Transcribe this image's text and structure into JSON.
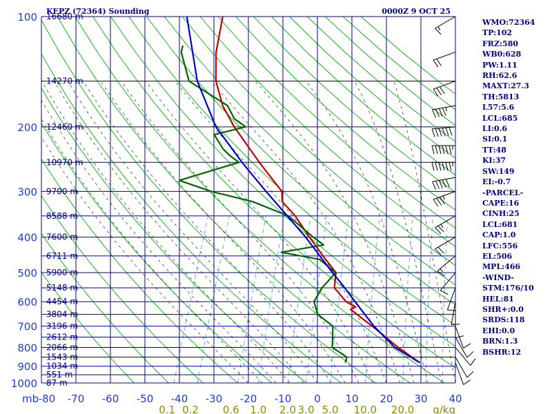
{
  "header": {
    "title": "KEPZ (72364) Sounding",
    "time": "0000Z  9 OCT 25"
  },
  "indices": [
    "WMO:72364",
    "TP:102",
    "FRZ:580",
    "WB0:628",
    "PW:1.11",
    "RH:62.6",
    "MAXT:27.3",
    "TH:5813",
    "L57:5.6",
    "LCL:685",
    "LI:0.6",
    "SI:0.1",
    "TT:48",
    "KI:37",
    "SW:149",
    "EI:-0.7",
    "-PARCEL-",
    "CAPE:16",
    "CINH:25",
    "LCL:681",
    "CAP:1.0",
    "LFC:556",
    "EL:506",
    "MPL:466",
    "-WIND-",
    "STM:176/10",
    "HEL:81",
    "SHR+:0.0",
    "SRDS:118",
    "EHI:0.0",
    "BRN:1.3",
    "BSHR:12"
  ],
  "chart_data": {
    "type": "line",
    "title": "KEPZ (72364) Sounding",
    "diagram": "Skew-T log-P",
    "pressure_levels_mb": [
      100,
      200,
      300,
      400,
      500,
      600,
      700,
      800,
      900,
      1000
    ],
    "pressure_unit_label": "mb",
    "temperature_ticks_c": [
      -80,
      -70,
      -60,
      -50,
      -40,
      -30,
      -20,
      -10,
      0,
      10,
      20,
      30,
      40
    ],
    "temperature_tick_labels": [
      "-80",
      "-70",
      "-60",
      "-50",
      "-40",
      "-30",
      "-20",
      "-10",
      "0",
      "10",
      "20",
      "30",
      "40"
    ],
    "mixing_ratio_labels": [
      "0.1",
      "0.2",
      "0.6",
      "1.0",
      "2.0",
      "3.0",
      "5.0",
      "10.0",
      "20.0"
    ],
    "mixing_ratio_unit": "g/kg",
    "height_labels": [
      {
        "p": 100,
        "label": "16680 m"
      },
      {
        "p": 150,
        "label": "14270 m"
      },
      {
        "p": 200,
        "label": "12460 m"
      },
      {
        "p": 250,
        "label": "10970 m"
      },
      {
        "p": 300,
        "label": "9700 m"
      },
      {
        "p": 350,
        "label": "8588 m"
      },
      {
        "p": 400,
        "label": "7600 m"
      },
      {
        "p": 450,
        "label": "6711 m"
      },
      {
        "p": 500,
        "label": "5900 m"
      },
      {
        "p": 550,
        "label": "5148 m"
      },
      {
        "p": 600,
        "label": "4454 m"
      },
      {
        "p": 650,
        "label": "3804 m"
      },
      {
        "p": 700,
        "label": "3196 m"
      },
      {
        "p": 750,
        "label": "2612 m"
      },
      {
        "p": 800,
        "label": "2066 m"
      },
      {
        "p": 850,
        "label": "1543 m"
      },
      {
        "p": 900,
        "label": "1034 m"
      },
      {
        "p": 950,
        "label": "551 m"
      },
      {
        "p": 1000,
        "label": "87 m"
      }
    ],
    "series": [
      {
        "name": "Temperature",
        "color": "#c00000",
        "points": [
          [
            100,
            -69.9
          ],
          [
            125,
            -67.7
          ],
          [
            150,
            -64.4
          ],
          [
            175,
            -59.6
          ],
          [
            200,
            -53.8
          ],
          [
            250,
            -42.4
          ],
          [
            300,
            -32.5
          ],
          [
            320,
            -31.2
          ],
          [
            350,
            -25.8
          ],
          [
            400,
            -19.2
          ],
          [
            450,
            -13.1
          ],
          [
            500,
            -7.4
          ],
          [
            550,
            -6.1
          ],
          [
            600,
            -1.1
          ],
          [
            620,
            2.3
          ],
          [
            630,
            1.1
          ],
          [
            700,
            9.3
          ],
          [
            800,
            19.3
          ],
          [
            880,
            27.3
          ]
        ]
      },
      {
        "name": "Dewpoint",
        "color": "#006400",
        "points": [
          [
            120,
            -78.1
          ],
          [
            125,
            -77.8
          ],
          [
            150,
            -72.2
          ],
          [
            175,
            -58.2
          ],
          [
            190,
            -54.7
          ],
          [
            200,
            -50.5
          ],
          [
            210,
            -58.7
          ],
          [
            230,
            -54.4
          ],
          [
            240,
            -51.6
          ],
          [
            250,
            -48.3
          ],
          [
            280,
            -63.5
          ],
          [
            300,
            -53.0
          ],
          [
            320,
            -39.8
          ],
          [
            350,
            -27.8
          ],
          [
            400,
            -18.1
          ],
          [
            420,
            -14.2
          ],
          [
            440,
            -25.6
          ],
          [
            460,
            -13.7
          ],
          [
            500,
            -7.5
          ],
          [
            550,
            -9.7
          ],
          [
            600,
            -10.4
          ],
          [
            650,
            -7.8
          ],
          [
            700,
            -2.1
          ],
          [
            800,
            0.2
          ],
          [
            850,
            5.5
          ],
          [
            880,
            5.7
          ]
        ]
      },
      {
        "name": "Parcel",
        "color": "#0000c8",
        "points": [
          [
            100,
            -80.3
          ],
          [
            150,
            -69.8
          ],
          [
            200,
            -59.1
          ],
          [
            250,
            -47.4
          ],
          [
            300,
            -37.1
          ],
          [
            350,
            -28.1
          ],
          [
            400,
            -20.3
          ],
          [
            450,
            -14.0
          ],
          [
            500,
            -8.4
          ],
          [
            550,
            -3.1
          ],
          [
            600,
            1.5
          ],
          [
            650,
            5.8
          ],
          [
            700,
            9.8
          ],
          [
            800,
            18.3
          ],
          [
            880,
            27.3
          ]
        ]
      }
    ],
    "wind_barbs": [
      {
        "p": 100,
        "dir": 240,
        "spd": 15
      },
      {
        "p": 125,
        "dir": 250,
        "spd": 20
      },
      {
        "p": 150,
        "dir": 250,
        "spd": 30
      },
      {
        "p": 175,
        "dir": 260,
        "spd": 45
      },
      {
        "p": 200,
        "dir": 265,
        "spd": 60
      },
      {
        "p": 225,
        "dir": 270,
        "spd": 70
      },
      {
        "p": 250,
        "dir": 270,
        "spd": 65
      },
      {
        "p": 275,
        "dir": 260,
        "spd": 50
      },
      {
        "p": 300,
        "dir": 250,
        "spd": 35
      },
      {
        "p": 350,
        "dir": 240,
        "spd": 25
      },
      {
        "p": 400,
        "dir": 240,
        "spd": 20
      },
      {
        "p": 450,
        "dir": 230,
        "spd": 15
      },
      {
        "p": 500,
        "dir": 220,
        "spd": 10
      },
      {
        "p": 550,
        "dir": 200,
        "spd": 10
      },
      {
        "p": 600,
        "dir": 190,
        "spd": 10
      },
      {
        "p": 650,
        "dir": 180,
        "spd": 10
      },
      {
        "p": 700,
        "dir": 160,
        "spd": 10
      },
      {
        "p": 750,
        "dir": 150,
        "spd": 10
      },
      {
        "p": 800,
        "dir": 140,
        "spd": 10
      },
      {
        "p": 850,
        "dir": 150,
        "spd": 10
      },
      {
        "p": 880,
        "dir": 160,
        "spd": 10
      }
    ],
    "colors": {
      "grid": "#00008b",
      "dry_adiabat": "#00b000",
      "moist_adiabat": "#404040",
      "mixing_ratio": "#3aa0d0",
      "tick_text": "#1e3ccf",
      "mixing_text": "#8b8b00"
    }
  }
}
